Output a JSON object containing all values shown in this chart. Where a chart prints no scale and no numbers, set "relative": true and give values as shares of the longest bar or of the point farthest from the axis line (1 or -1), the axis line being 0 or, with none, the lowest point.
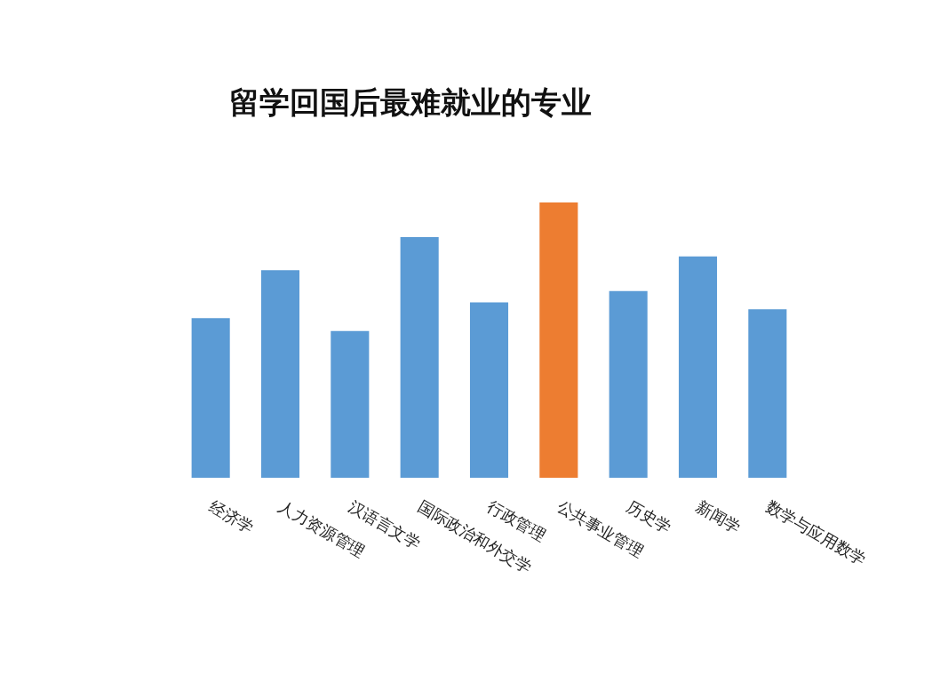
{
  "chart_data": {
    "type": "bar",
    "title": "留学回国后最难就业的专业",
    "relative": true,
    "categories": [
      "经济学",
      "人力资源管理",
      "汉语言文学",
      "国际政治和外交学",
      "行政管理",
      "公共事业管理",
      "历史学",
      "新闻学",
      "数学与应用数学"
    ],
    "values": [
      0.58,
      0.754,
      0.533,
      0.874,
      0.637,
      1,
      0.678,
      0.804,
      0.612
    ],
    "colors": [
      "#5b9bd5",
      "#5b9bd5",
      "#5b9bd5",
      "#5b9bd5",
      "#5b9bd5",
      "#ed7d31",
      "#5b9bd5",
      "#5b9bd5",
      "#5b9bd5"
    ]
  }
}
